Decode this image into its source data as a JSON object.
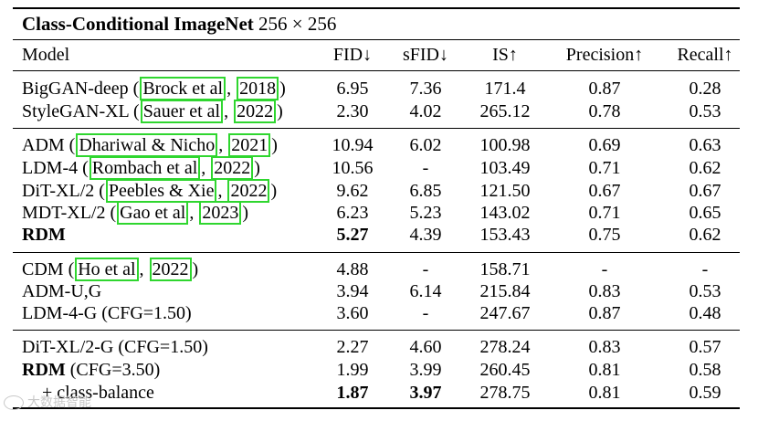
{
  "title": "Class-Conditional ImageNet",
  "resolution": "256 × 256",
  "headers": [
    "Model",
    "FID↓",
    "sFID↓",
    "IS↑",
    "Precision↑",
    "Recall↑"
  ],
  "rows": [
    {
      "model": "BigGAN-deep (",
      "cite_author": "Brock et al",
      "cite_year": "2018",
      "suffix": ")",
      "fid": "6.95",
      "sfid": "7.36",
      "is": "171.4",
      "precision": "0.87",
      "recall": "0.28"
    },
    {
      "model": "StyleGAN-XL (",
      "cite_author": "Sauer et al",
      "cite_year": "2022",
      "suffix": ")",
      "fid": "2.30",
      "sfid": "4.02",
      "is": "265.12",
      "precision": "0.78",
      "recall": "0.53"
    },
    {
      "model": "ADM (",
      "cite_author": "Dhariwal & Nicho",
      "cite_year": "2021",
      "suffix": ")",
      "fid": "10.94",
      "sfid": "6.02",
      "is": "100.98",
      "precision": "0.69",
      "recall": "0.63"
    },
    {
      "model": "LDM-4 (",
      "cite_author": "Rombach et al",
      "cite_year": "2022",
      "suffix": ")",
      "fid": "10.56",
      "sfid": "-",
      "is": "103.49",
      "precision": "0.71",
      "recall": "0.62"
    },
    {
      "model": "DiT-XL/2 (",
      "cite_author": "Peebles & Xie",
      "cite_year": "2022",
      "suffix": ")",
      "fid": "9.62",
      "sfid": "6.85",
      "is": "121.50",
      "precision": "0.67",
      "recall": "0.67"
    },
    {
      "model": "MDT-XL/2 (",
      "cite_author": "Gao et al",
      "cite_year": "2023",
      "suffix": ")",
      "fid": "6.23",
      "sfid": "5.23",
      "is": "143.02",
      "precision": "0.71",
      "recall": "0.65"
    },
    {
      "model": "RDM",
      "fid": "5.27",
      "sfid": "4.39",
      "is": "153.43",
      "precision": "0.75",
      "recall": "0.62"
    },
    {
      "model": "CDM (",
      "cite_author": "Ho et al",
      "cite_year": "2022",
      "suffix": ")",
      "fid": "4.88",
      "sfid": "-",
      "is": "158.71",
      "precision": "-",
      "recall": "-"
    },
    {
      "model": "ADM-U,G",
      "fid": "3.94",
      "sfid": "6.14",
      "is": "215.84",
      "precision": "0.83",
      "recall": "0.53"
    },
    {
      "model": "LDM-4-G (CFG=1.50)",
      "fid": "3.60",
      "sfid": "-",
      "is": "247.67",
      "precision": "0.87",
      "recall": "0.48"
    },
    {
      "model": "DiT-XL/2-G (CFG=1.50)",
      "fid": "2.27",
      "sfid": "4.60",
      "is": "278.24",
      "precision": "0.83",
      "recall": "0.57"
    },
    {
      "model": "RDM",
      "model_suffix": " (CFG=3.50)",
      "fid": "1.99",
      "sfid": "3.99",
      "is": "260.45",
      "precision": "0.81",
      "recall": "0.58"
    },
    {
      "model": "+ class-balance",
      "fid": "1.87",
      "sfid": "3.97",
      "is": "278.75",
      "precision": "0.81",
      "recall": "0.59"
    }
  ],
  "cite_sep": ", ",
  "watermark": "大数据智能",
  "colors": {
    "citation_box": "#2fd62f",
    "text": "#000000"
  }
}
